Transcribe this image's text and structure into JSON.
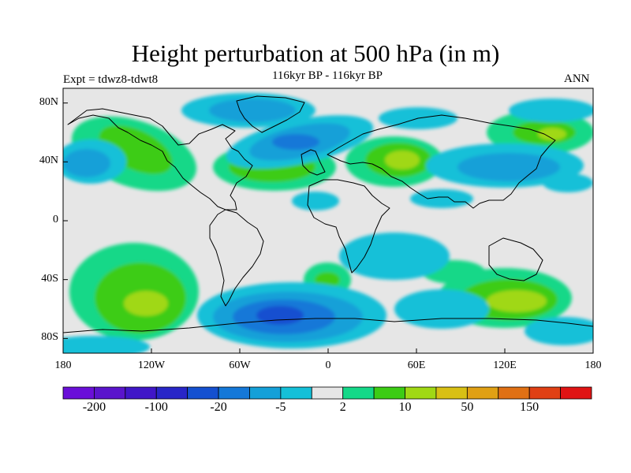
{
  "title": "Height perturbation at 500 hPa (in m)",
  "left_label": "Expt = tdwz8-tdwt8",
  "subtitle": "116kyr BP - 116kyr BP",
  "right_label": "ANN",
  "map": {
    "projection": "cylindrical-equidistant",
    "lon_range": [
      -180,
      180
    ],
    "lat_range": [
      -90,
      90
    ],
    "background_color": "#e6e6e6",
    "lat_ticks": [
      {
        "value": 80,
        "label": "80N"
      },
      {
        "value": 40,
        "label": "40N"
      },
      {
        "value": 0,
        "label": "0"
      },
      {
        "value": -40,
        "label": "40S"
      },
      {
        "value": -80,
        "label": "80S"
      }
    ],
    "lon_ticks": [
      {
        "value": -180,
        "label": "180"
      },
      {
        "value": -120,
        "label": "120W"
      },
      {
        "value": -60,
        "label": "60W"
      },
      {
        "value": 0,
        "label": "0"
      },
      {
        "value": 60,
        "label": "60E"
      },
      {
        "value": 120,
        "label": "120E"
      },
      {
        "value": 180,
        "label": "180"
      }
    ]
  },
  "colorbar": {
    "colors": [
      "#6a0fd8",
      "#5a14cc",
      "#4016c8",
      "#2826c8",
      "#1450d0",
      "#1478d8",
      "#14a0d8",
      "#14c0d8",
      "#e6e6e6",
      "#14d888",
      "#3ccc14",
      "#a0d814",
      "#d8c014",
      "#e0a014",
      "#e07014",
      "#e04014",
      "#e01414"
    ],
    "labels": [
      {
        "text": "-200",
        "after_box": 1
      },
      {
        "text": "-100",
        "after_box": 3
      },
      {
        "text": "-20",
        "after_box": 5
      },
      {
        "text": "-5",
        "after_box": 7
      },
      {
        "text": "2",
        "after_box": 9
      },
      {
        "text": "10",
        "after_box": 11
      },
      {
        "text": "50",
        "after_box": 13
      },
      {
        "text": "150",
        "after_box": 15
      }
    ]
  }
}
